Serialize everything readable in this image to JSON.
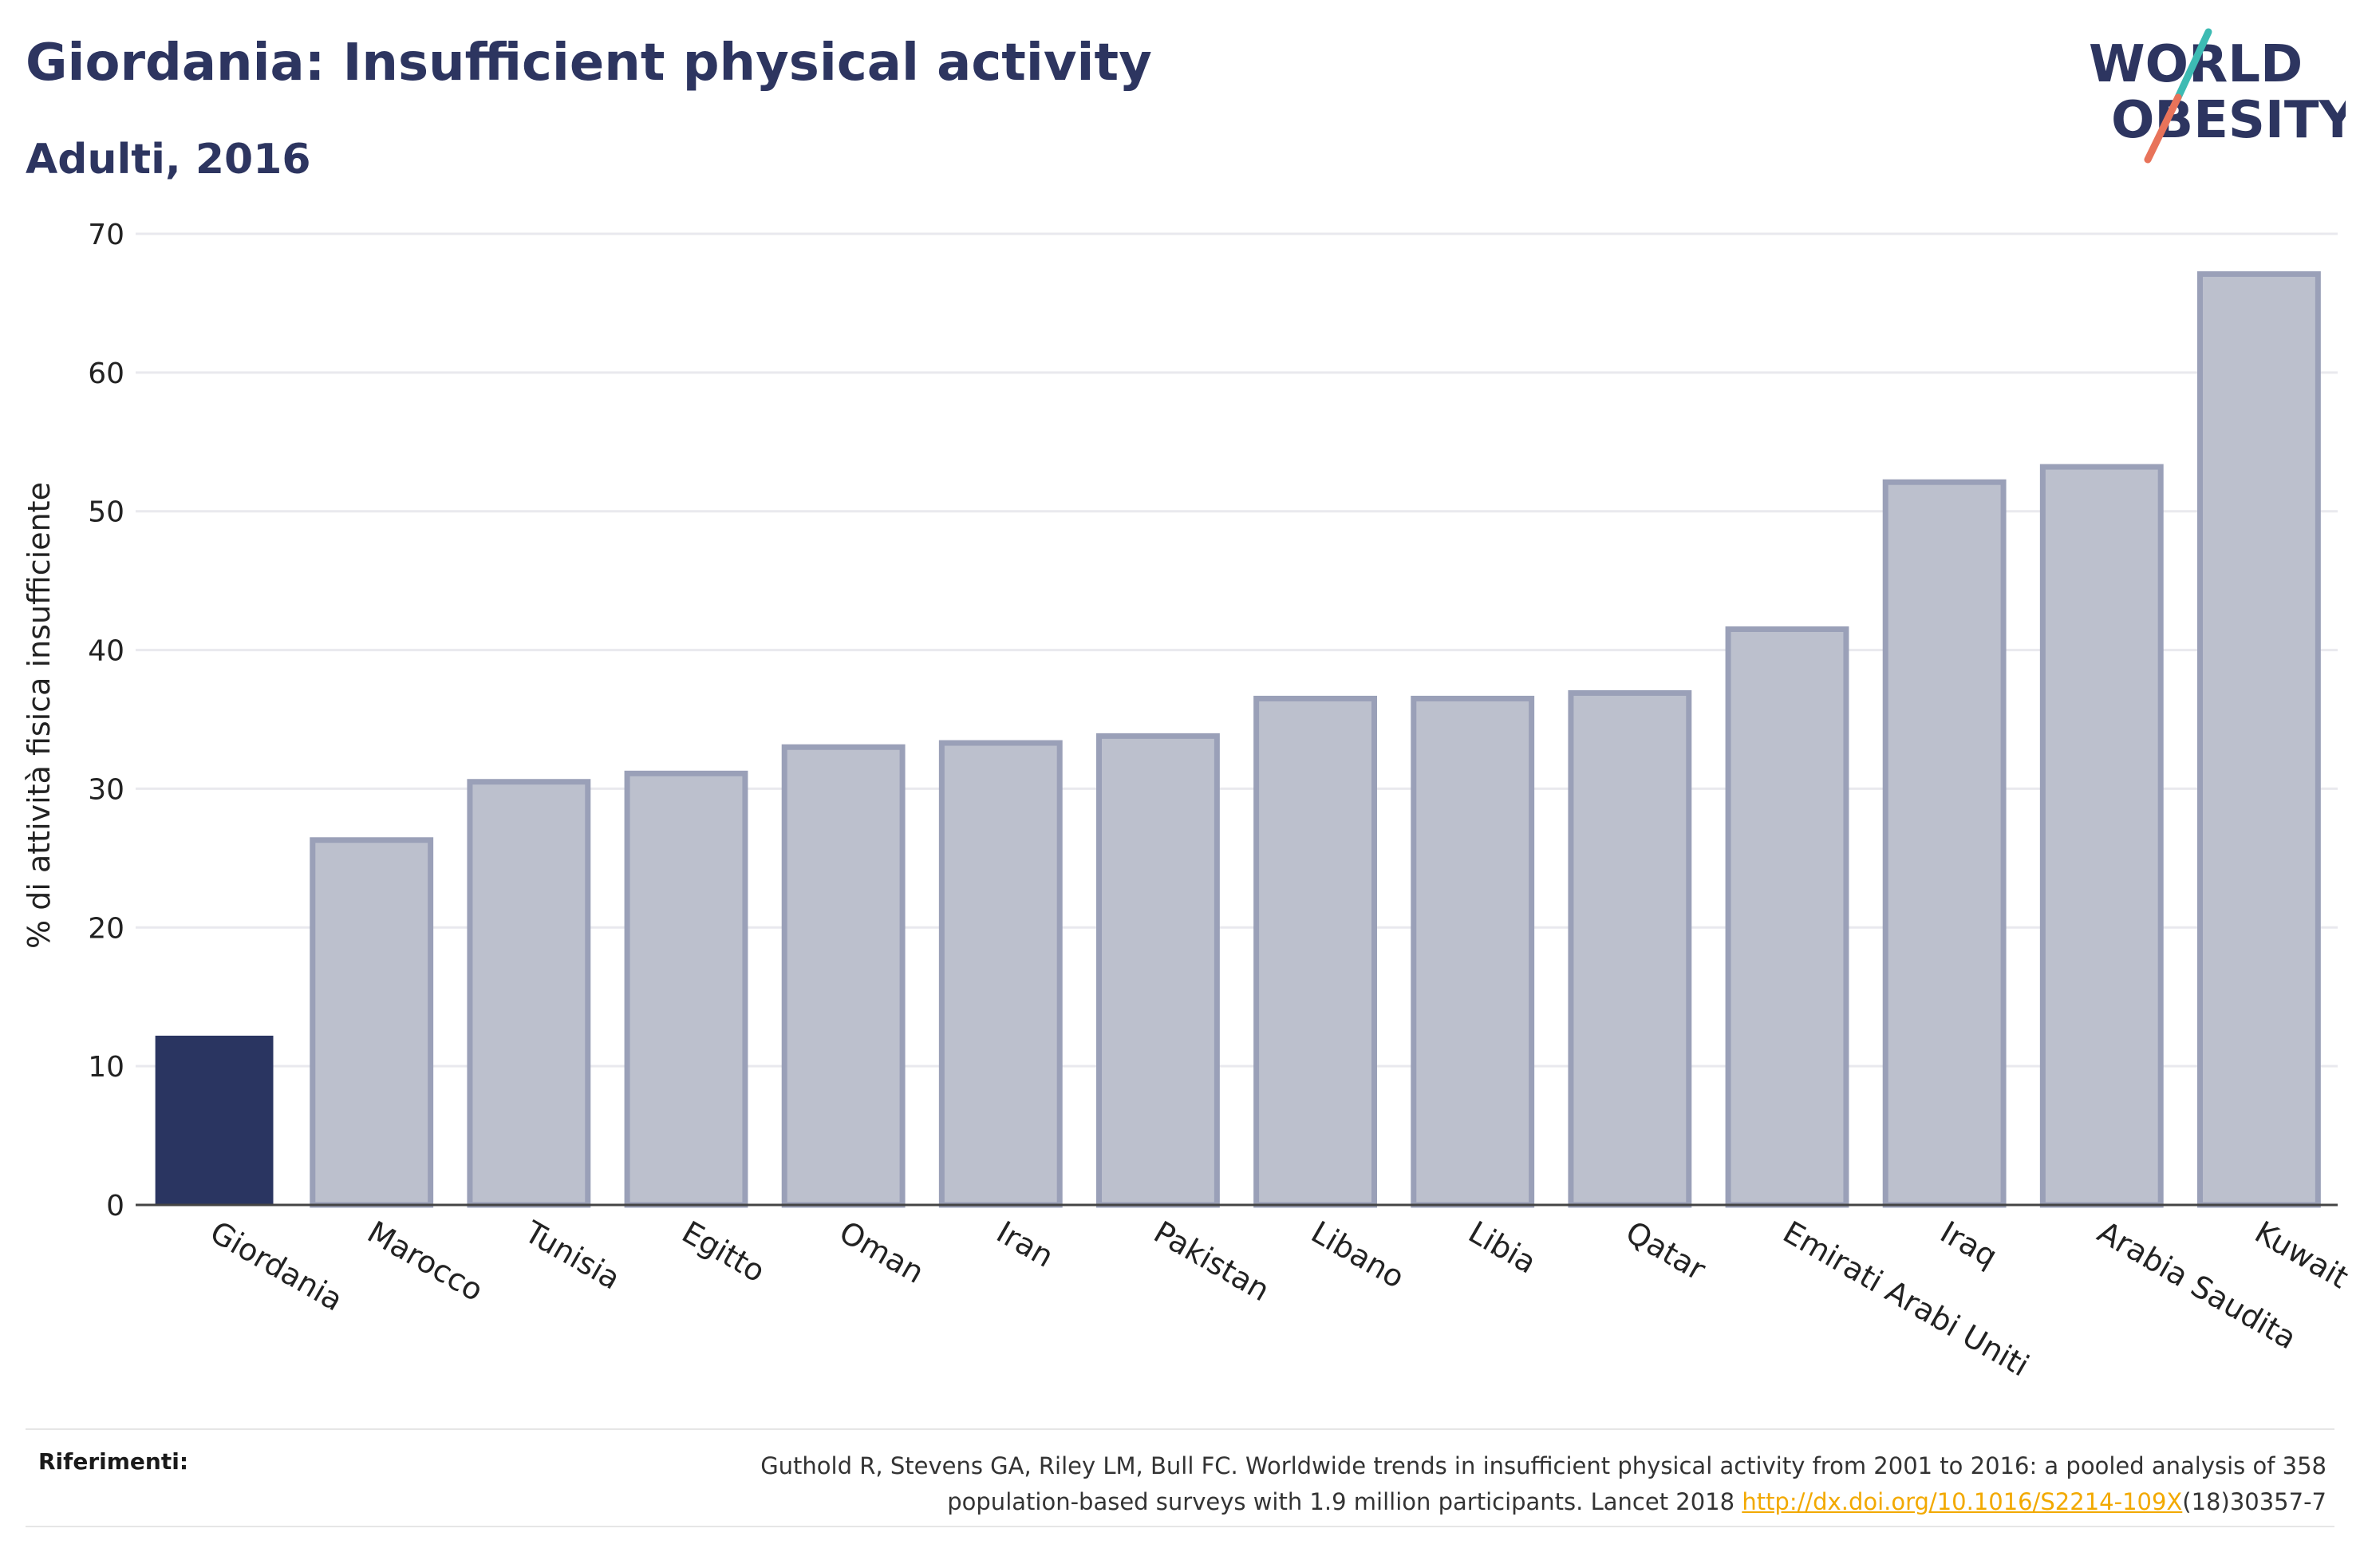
{
  "title": "Giordania: Insufficient physical activity",
  "subtitle": "Adulti, 2016",
  "logo": {
    "line1": "WORLD",
    "line2": "OBESITY",
    "slash_colors": [
      "#3dbbb3",
      "#e8735a"
    ]
  },
  "colors": {
    "highlight": "#2a3561",
    "bar_fill": "#bcc0cd",
    "bar_stroke": "#9aa0b8",
    "text": "#2d3560",
    "link": "#f2a900"
  },
  "chart_data": {
    "type": "bar",
    "title": "Giordania: Insufficient physical activity",
    "subtitle": "Adulti, 2016",
    "xlabel": "",
    "ylabel": "% di attività fisica insufficiente",
    "ylim": [
      0,
      70
    ],
    "yticks": [
      0,
      10,
      20,
      30,
      40,
      50,
      60,
      70
    ],
    "grid": true,
    "highlight": "Giordania",
    "categories": [
      "Giordania",
      "Marocco",
      "Tunisia",
      "Egitto",
      "Oman",
      "Iran",
      "Pakistan",
      "Libano",
      "Libia",
      "Qatar",
      "Emirati Arabi Uniti",
      "Iraq",
      "Arabia Saudita",
      "Kuwait"
    ],
    "values": [
      12.2,
      26.3,
      30.5,
      31.1,
      33.0,
      33.3,
      33.8,
      36.5,
      36.5,
      36.9,
      41.5,
      52.1,
      53.2,
      67.1
    ]
  },
  "references": {
    "label": "Riferimenti:",
    "line1": "Guthold R, Stevens GA, Riley LM, Bull FC. Worldwide trends in insufficient physical activity from 2001 to 2016: a pooled analysis of 358",
    "line2_prefix": "population-based surveys with 1.9 million participants. Lancet 2018 ",
    "link_text": "http://dx.doi.org/10.1016/S2214-109X",
    "line2_suffix": "(18)30357-7"
  }
}
